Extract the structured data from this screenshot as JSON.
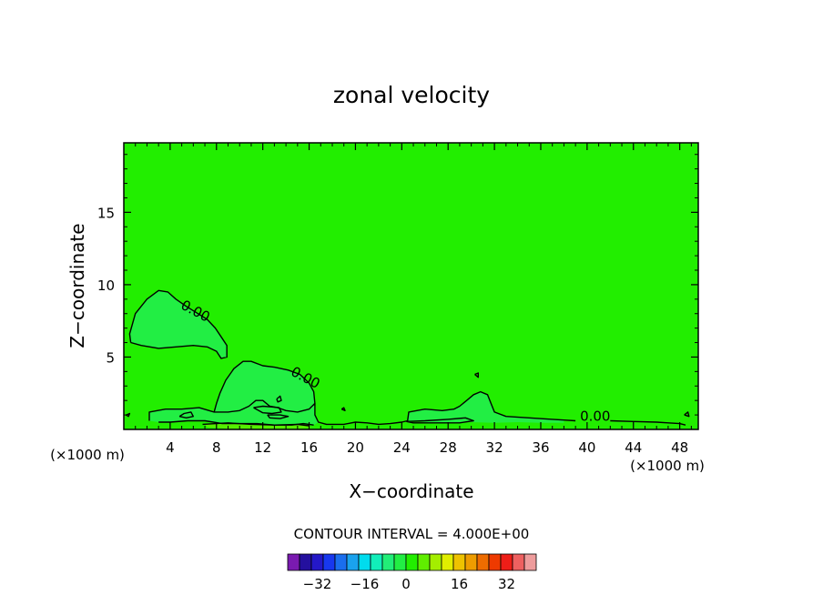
{
  "chart_data": {
    "type": "contour",
    "title": "zonal velocity",
    "xlabel": "X−coordinate",
    "ylabel": "Z−coordinate",
    "x_unit_left": "(×1000 m)",
    "x_unit_right": "(×1000 m)",
    "xlim": [
      0,
      49.6
    ],
    "ylim": [
      0,
      19.8
    ],
    "x_ticks": [
      4,
      8,
      12,
      16,
      20,
      24,
      28,
      32,
      36,
      40,
      44,
      48
    ],
    "y_ticks": [
      5,
      10,
      15
    ],
    "background_color": "#22ee00",
    "contour_level_label": "0.00",
    "contour_labels": [
      {
        "text": "0.00",
        "x": 6.0,
        "y": 7.9
      },
      {
        "text": "0.00",
        "x": 15.5,
        "y": 3.3
      },
      {
        "text": "0.00",
        "x": 40.7,
        "y": 0.6
      }
    ],
    "regions": [
      {
        "fill": "#22ee44",
        "points": [
          [
            0.6,
            6.0
          ],
          [
            0.5,
            6.6
          ],
          [
            1.0,
            8.0
          ],
          [
            2.0,
            9.0
          ],
          [
            3.0,
            9.6
          ],
          [
            3.8,
            9.5
          ],
          [
            4.5,
            9.0
          ],
          [
            5.4,
            8.5
          ],
          [
            6.4,
            8.0
          ],
          [
            7.2,
            7.6
          ],
          [
            7.9,
            7.0
          ],
          [
            8.4,
            6.4
          ],
          [
            8.9,
            5.8
          ],
          [
            8.9,
            5.0
          ],
          [
            8.4,
            4.9
          ],
          [
            8.0,
            5.4
          ],
          [
            7.2,
            5.7
          ],
          [
            6.0,
            5.8
          ],
          [
            4.5,
            5.7
          ],
          [
            3.0,
            5.6
          ],
          [
            1.5,
            5.8
          ]
        ]
      },
      {
        "fill": "#22ee44",
        "points": [
          [
            7.8,
            1.2
          ],
          [
            8.0,
            1.8
          ],
          [
            8.3,
            2.5
          ],
          [
            8.8,
            3.4
          ],
          [
            9.5,
            4.2
          ],
          [
            10.3,
            4.7
          ],
          [
            11.0,
            4.7
          ],
          [
            12.0,
            4.4
          ],
          [
            13.0,
            4.3
          ],
          [
            14.2,
            4.1
          ],
          [
            15.2,
            3.8
          ],
          [
            16.0,
            3.2
          ],
          [
            16.4,
            2.6
          ],
          [
            16.5,
            1.8
          ],
          [
            16.0,
            1.4
          ],
          [
            15.0,
            1.2
          ],
          [
            14.0,
            1.3
          ],
          [
            13.3,
            1.5
          ],
          [
            12.6,
            1.6
          ],
          [
            12.0,
            2.0
          ],
          [
            11.4,
            2.0
          ],
          [
            10.8,
            1.6
          ],
          [
            10.0,
            1.3
          ],
          [
            9.0,
            1.2
          ]
        ]
      },
      {
        "fill": "#22ee44",
        "points": [
          [
            2.2,
            0.6
          ],
          [
            2.2,
            1.2
          ],
          [
            3.6,
            1.4
          ],
          [
            5.0,
            1.4
          ],
          [
            6.5,
            1.5
          ],
          [
            7.8,
            1.2
          ],
          [
            9.0,
            1.2
          ],
          [
            10.0,
            1.3
          ],
          [
            10.8,
            1.6
          ],
          [
            11.4,
            2.0
          ],
          [
            12.0,
            2.0
          ],
          [
            12.6,
            1.6
          ],
          [
            13.3,
            1.5
          ],
          [
            14.0,
            1.3
          ],
          [
            15.0,
            1.2
          ],
          [
            16.0,
            1.4
          ],
          [
            16.5,
            1.8
          ],
          [
            16.5,
            1.0
          ],
          [
            16.8,
            0.5
          ],
          [
            16.4,
            0.3
          ],
          [
            15.5,
            0.4
          ],
          [
            14.5,
            0.3
          ],
          [
            13.0,
            0.3
          ],
          [
            11.5,
            0.4
          ],
          [
            10.0,
            0.4
          ],
          [
            8.5,
            0.4
          ],
          [
            7.0,
            0.6
          ],
          [
            5.5,
            0.6
          ],
          [
            4.0,
            0.5
          ],
          [
            3.0,
            0.5
          ]
        ]
      },
      {
        "fill": "#55ee00",
        "points": [
          [
            7.0,
            0.35
          ],
          [
            9.0,
            0.45
          ],
          [
            11.0,
            0.35
          ],
          [
            13.0,
            0.3
          ],
          [
            15.0,
            0.35
          ],
          [
            16.0,
            0.25
          ],
          [
            16.2,
            0.1
          ],
          [
            15.0,
            0.05
          ],
          [
            12.0,
            0.05
          ],
          [
            9.0,
            0.05
          ],
          [
            7.2,
            0.15
          ]
        ]
      },
      {
        "fill": "#22ee44",
        "points": [
          [
            24.5,
            0.6
          ],
          [
            24.6,
            1.2
          ],
          [
            26.0,
            1.4
          ],
          [
            27.5,
            1.3
          ],
          [
            28.5,
            1.4
          ],
          [
            29.0,
            1.6
          ],
          [
            29.6,
            2.0
          ],
          [
            30.2,
            2.4
          ],
          [
            30.8,
            2.6
          ],
          [
            31.4,
            2.4
          ],
          [
            31.7,
            1.8
          ],
          [
            32.0,
            1.2
          ],
          [
            33.0,
            0.9
          ],
          [
            35.0,
            0.8
          ],
          [
            37.0,
            0.7
          ],
          [
            38.0,
            0.65
          ],
          [
            38.0,
            0.45
          ],
          [
            36.0,
            0.45
          ],
          [
            34.0,
            0.5
          ],
          [
            32.0,
            0.45
          ],
          [
            30.0,
            0.5
          ],
          [
            28.0,
            0.45
          ],
          [
            26.0,
            0.5
          ]
        ]
      }
    ],
    "contour_lines": [
      [
        [
          0.6,
          6.0
        ],
        [
          0.5,
          6.6
        ],
        [
          1.0,
          8.0
        ],
        [
          2.0,
          9.0
        ],
        [
          3.0,
          9.6
        ],
        [
          3.8,
          9.5
        ],
        [
          4.5,
          9.0
        ],
        [
          5.4,
          8.5
        ],
        [
          6.4,
          8.0
        ],
        [
          7.2,
          7.6
        ],
        [
          7.9,
          7.0
        ],
        [
          8.4,
          6.4
        ],
        [
          8.9,
          5.8
        ],
        [
          8.9,
          5.0
        ],
        [
          8.4,
          4.9
        ],
        [
          8.0,
          5.4
        ],
        [
          7.2,
          5.7
        ],
        [
          6.0,
          5.8
        ],
        [
          4.5,
          5.7
        ],
        [
          3.0,
          5.6
        ],
        [
          1.5,
          5.8
        ],
        [
          0.6,
          6.0
        ]
      ],
      [
        [
          7.8,
          1.2
        ],
        [
          8.0,
          1.8
        ],
        [
          8.3,
          2.5
        ],
        [
          8.8,
          3.4
        ],
        [
          9.5,
          4.2
        ],
        [
          10.3,
          4.7
        ],
        [
          11.0,
          4.7
        ],
        [
          12.0,
          4.4
        ],
        [
          13.0,
          4.3
        ],
        [
          14.2,
          4.1
        ],
        [
          15.2,
          3.8
        ],
        [
          16.0,
          3.2
        ],
        [
          16.4,
          2.6
        ],
        [
          16.5,
          1.8
        ]
      ],
      [
        [
          2.2,
          0.6
        ],
        [
          2.2,
          1.2
        ],
        [
          3.6,
          1.4
        ],
        [
          5.0,
          1.4
        ],
        [
          6.5,
          1.5
        ],
        [
          7.8,
          1.2
        ],
        [
          9.0,
          1.2
        ],
        [
          10.0,
          1.3
        ],
        [
          10.8,
          1.6
        ],
        [
          11.4,
          2.0
        ],
        [
          12.0,
          2.0
        ],
        [
          12.6,
          1.6
        ],
        [
          13.3,
          1.5
        ],
        [
          14.0,
          1.3
        ],
        [
          15.0,
          1.2
        ],
        [
          16.0,
          1.4
        ],
        [
          16.5,
          1.8
        ],
        [
          16.5,
          1.0
        ],
        [
          16.8,
          0.5
        ],
        [
          17.5,
          0.35
        ],
        [
          19.0,
          0.35
        ],
        [
          20.0,
          0.5
        ],
        [
          21.0,
          0.45
        ],
        [
          22.0,
          0.35
        ],
        [
          23.0,
          0.4
        ],
        [
          24.0,
          0.5
        ],
        [
          24.5,
          0.6
        ],
        [
          24.6,
          1.2
        ],
        [
          26.0,
          1.4
        ],
        [
          27.5,
          1.3
        ],
        [
          28.5,
          1.4
        ],
        [
          29.0,
          1.6
        ],
        [
          29.6,
          2.0
        ],
        [
          30.2,
          2.4
        ],
        [
          30.8,
          2.6
        ],
        [
          31.4,
          2.4
        ],
        [
          31.7,
          1.8
        ],
        [
          32.0,
          1.2
        ],
        [
          33.0,
          0.9
        ],
        [
          35.0,
          0.8
        ],
        [
          37.0,
          0.7
        ],
        [
          38.0,
          0.65
        ],
        [
          39.0,
          0.6
        ]
      ],
      [
        [
          42.0,
          0.6
        ],
        [
          44.0,
          0.55
        ],
        [
          46.0,
          0.5
        ],
        [
          47.0,
          0.45
        ],
        [
          48.0,
          0.4
        ],
        [
          48.5,
          0.3
        ]
      ],
      [
        [
          3.0,
          0.5
        ],
        [
          4.0,
          0.5
        ],
        [
          5.5,
          0.6
        ],
        [
          7.0,
          0.6
        ],
        [
          8.5,
          0.4
        ],
        [
          10.0,
          0.4
        ],
        [
          11.5,
          0.4
        ],
        [
          13.0,
          0.3
        ],
        [
          14.5,
          0.3
        ],
        [
          15.5,
          0.4
        ],
        [
          16.4,
          0.3
        ]
      ],
      [
        [
          4.8,
          0.9
        ],
        [
          5.2,
          1.1
        ],
        [
          5.8,
          1.2
        ],
        [
          6.0,
          0.9
        ],
        [
          5.4,
          0.8
        ],
        [
          4.8,
          0.9
        ]
      ],
      [
        [
          11.2,
          1.5
        ],
        [
          12.0,
          1.6
        ],
        [
          12.8,
          1.55
        ],
        [
          13.4,
          1.5
        ],
        [
          13.6,
          1.2
        ],
        [
          12.8,
          1.1
        ],
        [
          12.0,
          1.15
        ],
        [
          11.2,
          1.5
        ]
      ],
      [
        [
          12.4,
          1.0
        ],
        [
          13.5,
          1.0
        ],
        [
          14.2,
          0.9
        ],
        [
          13.5,
          0.75
        ],
        [
          12.6,
          0.8
        ],
        [
          12.4,
          1.0
        ]
      ],
      [
        [
          24.4,
          0.55
        ],
        [
          26.0,
          0.6
        ],
        [
          28.0,
          0.7
        ],
        [
          29.5,
          0.8
        ],
        [
          30.2,
          0.6
        ],
        [
          29.0,
          0.45
        ],
        [
          27.0,
          0.45
        ],
        [
          25.0,
          0.45
        ],
        [
          24.4,
          0.55
        ]
      ],
      [
        [
          6.8,
          0.35
        ],
        [
          9.0,
          0.45
        ],
        [
          11.0,
          0.35
        ],
        [
          13.0,
          0.3
        ],
        [
          15.0,
          0.35
        ],
        [
          16.0,
          0.25
        ]
      ],
      [
        [
          13.2,
          2.1
        ],
        [
          13.5,
          2.3
        ],
        [
          13.6,
          2.0
        ],
        [
          13.3,
          1.9
        ],
        [
          13.2,
          2.1
        ]
      ],
      [
        [
          30.3,
          3.8
        ],
        [
          30.6,
          3.9
        ],
        [
          30.6,
          3.6
        ],
        [
          30.3,
          3.8
        ]
      ],
      [
        [
          18.8,
          1.4
        ],
        [
          19.0,
          1.5
        ],
        [
          19.1,
          1.3
        ],
        [
          18.8,
          1.4
        ]
      ],
      [
        [
          48.4,
          1.0
        ],
        [
          48.7,
          1.2
        ],
        [
          48.8,
          0.9
        ],
        [
          48.4,
          1.0
        ]
      ],
      [
        [
          0.2,
          1.0
        ],
        [
          0.5,
          1.1
        ],
        [
          0.4,
          0.9
        ],
        [
          0.2,
          1.0
        ]
      ]
    ],
    "colorbar": {
      "title": "CONTOUR INTERVAL = 4.000E+00",
      "colors": [
        "#7a1ab0",
        "#24109e",
        "#2418c8",
        "#1838ee",
        "#1a6eee",
        "#1aa2ee",
        "#00dcee",
        "#12eeba",
        "#22ee78",
        "#22ee44",
        "#22ee00",
        "#60ee00",
        "#a4ee00",
        "#e0ee00",
        "#eec200",
        "#ee9c00",
        "#ee6c00",
        "#ee3a00",
        "#ee1e18",
        "#ee6060",
        "#ee9c9c"
      ],
      "tick_labels": [
        {
          "text": "−32",
          "slot": 2.5
        },
        {
          "text": "−16",
          "slot": 6.5
        },
        {
          "text": "0",
          "slot": 10.0
        },
        {
          "text": "16",
          "slot": 14.5
        },
        {
          "text": "32",
          "slot": 18.5
        }
      ]
    }
  }
}
